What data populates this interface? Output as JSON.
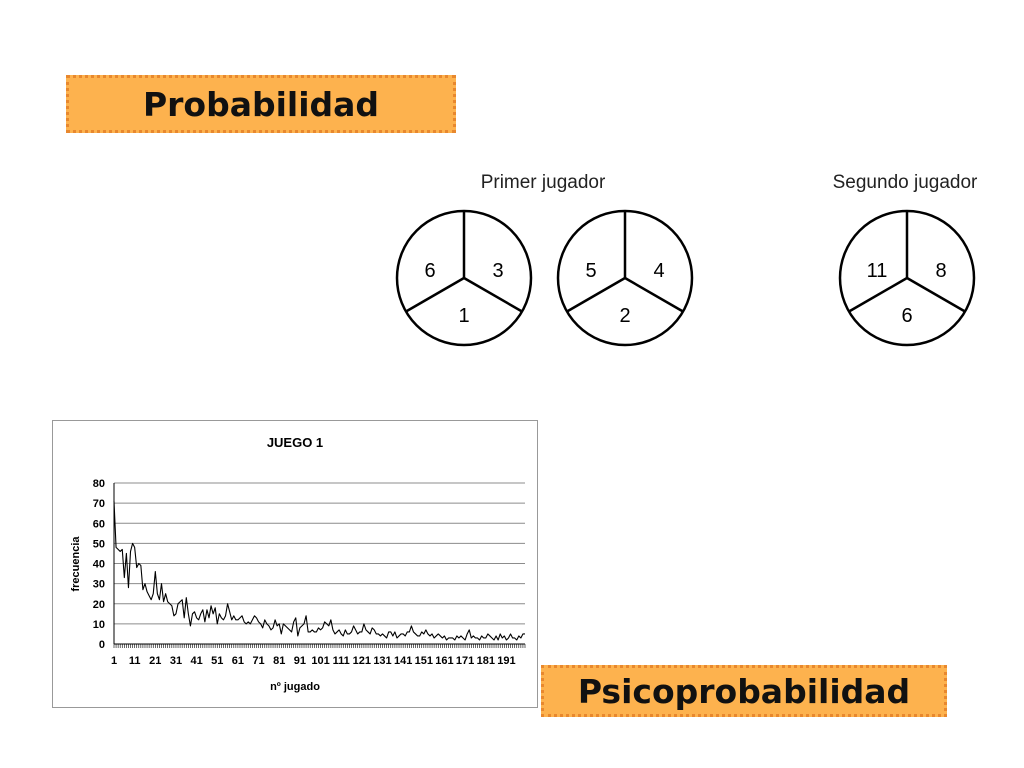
{
  "header": {
    "title": "Probabilidad"
  },
  "footer": {
    "title": "Psicoprobabilidad"
  },
  "spinners": {
    "group1_label": "Primer jugador",
    "group2_label": "Segundo jugador",
    "wheels": [
      {
        "left": "6",
        "right": "3",
        "bottom": "1"
      },
      {
        "left": "5",
        "right": "4",
        "bottom": "2"
      },
      {
        "left": "11",
        "right": "8",
        "bottom": "6"
      }
    ]
  },
  "chart_data": {
    "type": "line",
    "title": "JUEGO 1",
    "xlabel": "nº jugado",
    "ylabel": "frecuencia",
    "ylim": [
      0,
      80
    ],
    "yticks": [
      0,
      10,
      20,
      30,
      40,
      50,
      60,
      70,
      80
    ],
    "xticks": [
      "1",
      "11",
      "21",
      "31",
      "41",
      "51",
      "61",
      "71",
      "81",
      "91",
      "101",
      "111",
      "121",
      "131",
      "141",
      "151",
      "161",
      "171",
      "181",
      "191"
    ],
    "grid": "horizontal",
    "line_color": "#000000",
    "series": [
      {
        "values": [
          71,
          48,
          47,
          46,
          47,
          33,
          45,
          28,
          46,
          50,
          48,
          38,
          40,
          39,
          27,
          30,
          26,
          24,
          22,
          25,
          36,
          25,
          22,
          30,
          21,
          25,
          21,
          20,
          19,
          14,
          15,
          20,
          21,
          22,
          13,
          23,
          15,
          9,
          15,
          16,
          13,
          12,
          15,
          17,
          11,
          17,
          13,
          19,
          15,
          18,
          10,
          15,
          13,
          12,
          14,
          20,
          16,
          12,
          14,
          12,
          12,
          13,
          14,
          11,
          10,
          11,
          10,
          12,
          14,
          13,
          11,
          10,
          8,
          12,
          10,
          9,
          7,
          8,
          12,
          9,
          10,
          5,
          10,
          9,
          8,
          7,
          6,
          11,
          13,
          4,
          8,
          9,
          10,
          14,
          6,
          6,
          7,
          6,
          6,
          8,
          7,
          8,
          11,
          10,
          9,
          12,
          7,
          5,
          6,
          7,
          5,
          4,
          7,
          5,
          5,
          6,
          9,
          7,
          5,
          6,
          6,
          10,
          7,
          6,
          5,
          8,
          7,
          5,
          5,
          4,
          5,
          4,
          3,
          6,
          6,
          4,
          6,
          3,
          4,
          5,
          5,
          4,
          6,
          6,
          9,
          6,
          5,
          4,
          4,
          6,
          5,
          7,
          5,
          4,
          5,
          3,
          4,
          5,
          4,
          3,
          4,
          2,
          3,
          3,
          3,
          2,
          4,
          3,
          4,
          3,
          2,
          5,
          7,
          3,
          4,
          3,
          3,
          2,
          4,
          3,
          3,
          5,
          4,
          3,
          2,
          4,
          2,
          5,
          3,
          4,
          2,
          3,
          5,
          3,
          3,
          2,
          4,
          3,
          5,
          5
        ]
      }
    ]
  }
}
